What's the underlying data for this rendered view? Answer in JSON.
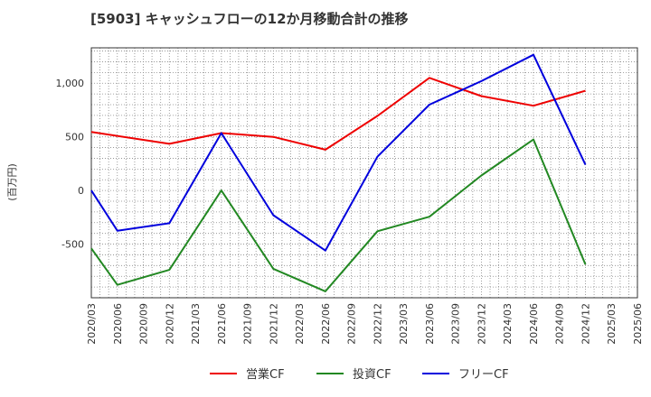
{
  "chart_data": {
    "type": "line",
    "title": "[5903]  キャッシュフローの12か月移動合計の推移",
    "ylabel": "(百万円)",
    "xlabel": "",
    "ylim": [
      -1000,
      1330
    ],
    "yticks": [
      -500,
      0,
      500,
      1000
    ],
    "ytick_labels": [
      "-500",
      "0",
      "500",
      "1,000"
    ],
    "categories": [
      "2020/03",
      "2020/06",
      "2020/09",
      "2020/12",
      "2021/03",
      "2021/06",
      "2021/09",
      "2021/12",
      "2022/03",
      "2022/06",
      "2022/09",
      "2022/12",
      "2023/03",
      "2023/06",
      "2023/09",
      "2023/12",
      "2024/03",
      "2024/06",
      "2024/09",
      "2024/12",
      "2025/03",
      "2025/06"
    ],
    "grid": true,
    "legend_position": "bottom",
    "series": [
      {
        "name": "営業CF",
        "color": "#ee0000",
        "values": [
          545,
          null,
          null,
          435,
          null,
          535,
          null,
          500,
          null,
          380,
          null,
          695,
          null,
          1050,
          null,
          880,
          null,
          790,
          null,
          930,
          null,
          null
        ]
      },
      {
        "name": "投資CF",
        "color": "#228822",
        "values": [
          -540,
          -880,
          null,
          -740,
          null,
          0,
          null,
          -730,
          null,
          -940,
          null,
          -380,
          null,
          -245,
          null,
          140,
          null,
          475,
          null,
          -690,
          null,
          null
        ]
      },
      {
        "name": "フリーCF",
        "color": "#0000dd",
        "values": [
          0,
          -375,
          null,
          -305,
          null,
          535,
          null,
          -230,
          null,
          -560,
          null,
          315,
          null,
          800,
          null,
          1020,
          null,
          1265,
          null,
          240,
          null,
          null
        ]
      }
    ]
  }
}
